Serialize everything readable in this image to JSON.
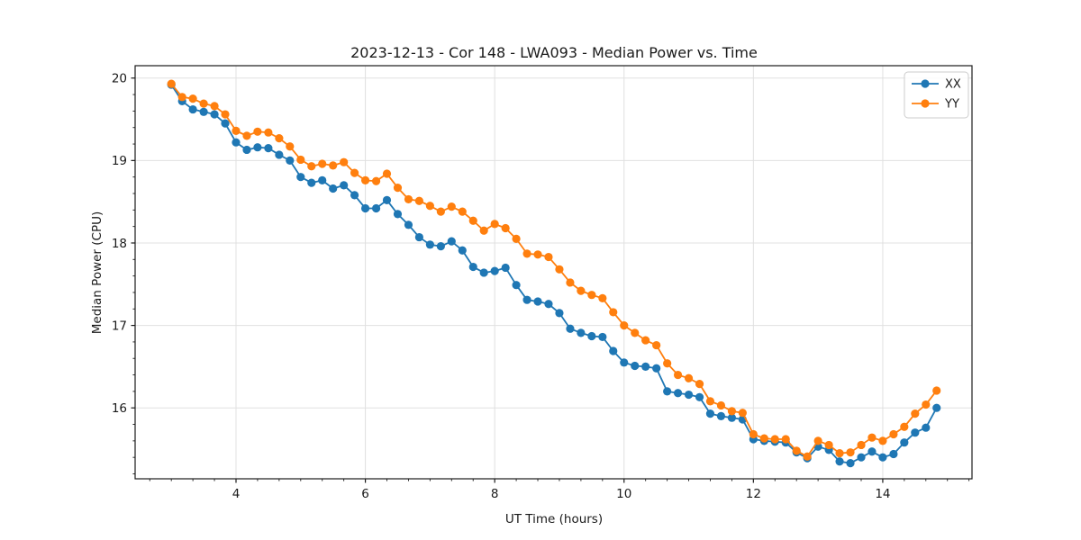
{
  "chart_data": {
    "type": "line",
    "title": "2023-12-13 - Cor 148 - LWA093 - Median Power vs. Time",
    "xlabel": "UT Time (hours)",
    "ylabel": "Median Power (CPU)",
    "xlim": [
      2.44,
      15.38
    ],
    "ylim": [
      15.14,
      20.15
    ],
    "xticks": [
      4,
      6,
      8,
      10,
      12,
      14
    ],
    "yticks": [
      16,
      17,
      18,
      19,
      20
    ],
    "x_minor_step": 0.33333,
    "y_minor_step": 0.2,
    "grid": true,
    "legend_position": "upper right",
    "background_color": "#ffffff",
    "grid_color": "#e0e0e0",
    "spine_color": "#1a1a1a",
    "x": [
      3.0,
      3.167,
      3.333,
      3.5,
      3.667,
      3.833,
      4.0,
      4.167,
      4.333,
      4.5,
      4.667,
      4.833,
      5.0,
      5.167,
      5.333,
      5.5,
      5.667,
      5.833,
      6.0,
      6.167,
      6.333,
      6.5,
      6.667,
      6.833,
      7.0,
      7.167,
      7.333,
      7.5,
      7.667,
      7.833,
      8.0,
      8.167,
      8.333,
      8.5,
      8.667,
      8.833,
      9.0,
      9.167,
      9.333,
      9.5,
      9.667,
      9.833,
      10.0,
      10.167,
      10.333,
      10.5,
      10.667,
      10.833,
      11.0,
      11.167,
      11.333,
      11.5,
      11.667,
      11.833,
      12.0,
      12.167,
      12.333,
      12.5,
      12.667,
      12.833,
      13.0,
      13.167,
      13.333,
      13.5,
      13.667,
      13.833,
      14.0,
      14.167,
      14.333,
      14.5,
      14.667,
      14.833
    ],
    "series": [
      {
        "name": "XX",
        "color": "#1f77b4",
        "values": [
          19.92,
          19.72,
          19.62,
          19.59,
          19.56,
          19.45,
          19.22,
          19.13,
          19.16,
          19.15,
          19.07,
          19.0,
          18.8,
          18.73,
          18.76,
          18.66,
          18.7,
          18.58,
          18.42,
          18.42,
          18.52,
          18.35,
          18.22,
          18.07,
          17.98,
          17.96,
          18.02,
          17.91,
          17.71,
          17.64,
          17.66,
          17.7,
          17.49,
          17.31,
          17.29,
          17.26,
          17.15,
          16.96,
          16.91,
          16.87,
          16.86,
          16.69,
          16.55,
          16.51,
          16.5,
          16.48,
          16.2,
          16.18,
          16.16,
          16.13,
          15.93,
          15.9,
          15.88,
          15.86,
          15.62,
          15.6,
          15.59,
          15.58,
          15.46,
          15.39,
          15.53,
          15.49,
          15.35,
          15.33,
          15.4,
          15.47,
          15.4,
          15.44,
          15.58,
          15.7,
          15.76,
          16.0
        ]
      },
      {
        "name": "YY",
        "color": "#ff7f0e",
        "values": [
          19.93,
          19.77,
          19.75,
          19.69,
          19.66,
          19.56,
          19.36,
          19.3,
          19.35,
          19.34,
          19.27,
          19.17,
          19.01,
          18.93,
          18.96,
          18.94,
          18.98,
          18.85,
          18.76,
          18.75,
          18.84,
          18.67,
          18.53,
          18.51,
          18.45,
          18.38,
          18.44,
          18.38,
          18.27,
          18.15,
          18.23,
          18.18,
          18.05,
          17.87,
          17.86,
          17.83,
          17.68,
          17.52,
          17.42,
          17.37,
          17.33,
          17.16,
          17.0,
          16.91,
          16.82,
          16.76,
          16.54,
          16.4,
          16.36,
          16.29,
          16.08,
          16.03,
          15.96,
          15.94,
          15.68,
          15.63,
          15.62,
          15.62,
          15.48,
          15.41,
          15.6,
          15.55,
          15.45,
          15.46,
          15.55,
          15.64,
          15.6,
          15.68,
          15.77,
          15.93,
          16.04,
          16.21
        ]
      }
    ]
  }
}
